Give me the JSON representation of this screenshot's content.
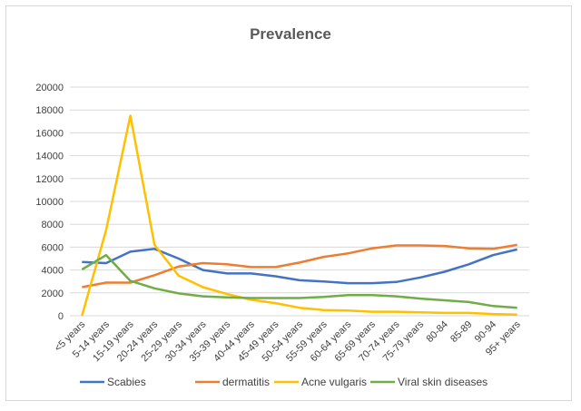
{
  "chart_data": {
    "type": "line",
    "title": "Prevalence",
    "xlabel": "",
    "ylabel": "",
    "categories": [
      "<5 years",
      "5-14 years",
      "15-19 years",
      "20-24 years",
      "25-29 years",
      "30-34 years",
      "35-39 years",
      "40-44 years",
      "45-49 years",
      "50-54 years",
      "55-59 years",
      "60-64 years",
      "65-69 years",
      "70-74 years",
      "75-79 years",
      "80-84",
      "85-89",
      "90-94",
      "95+ years"
    ],
    "ylim": [
      0,
      20000
    ],
    "yticks": [
      0,
      2000,
      4000,
      6000,
      8000,
      10000,
      12000,
      14000,
      16000,
      18000,
      20000
    ],
    "ytick_labels": [
      "0",
      "2000",
      "4000",
      "6000",
      "8000",
      "10000",
      "12000",
      "14000",
      "16000",
      "18000",
      "20000"
    ],
    "grid": true,
    "legend_position": "bottom",
    "series": [
      {
        "name": "Scabies",
        "color": "#4472c4",
        "values": [
          4700,
          4600,
          5600,
          5850,
          5000,
          4000,
          3700,
          3700,
          3450,
          3100,
          3000,
          2850,
          2850,
          2950,
          3350,
          3850,
          4500,
          5300,
          5800
        ]
      },
      {
        "name": "dermatitis",
        "color": "#ed7d31",
        "values": [
          2500,
          2900,
          2900,
          3550,
          4300,
          4600,
          4500,
          4250,
          4250,
          4650,
          5150,
          5450,
          5900,
          6150,
          6150,
          6100,
          5900,
          5850,
          6200
        ]
      },
      {
        "name": "Acne vulgaris",
        "color": "#ffc000",
        "values": [
          0,
          7500,
          17500,
          6200,
          3500,
          2500,
          1900,
          1400,
          1100,
          700,
          500,
          450,
          350,
          350,
          300,
          250,
          250,
          150,
          100
        ]
      },
      {
        "name": "Viral skin diseases",
        "color": "#70ad47",
        "values": [
          4050,
          5300,
          3050,
          2400,
          1950,
          1700,
          1600,
          1550,
          1550,
          1550,
          1650,
          1800,
          1800,
          1700,
          1500,
          1350,
          1200,
          850,
          700
        ]
      }
    ]
  }
}
